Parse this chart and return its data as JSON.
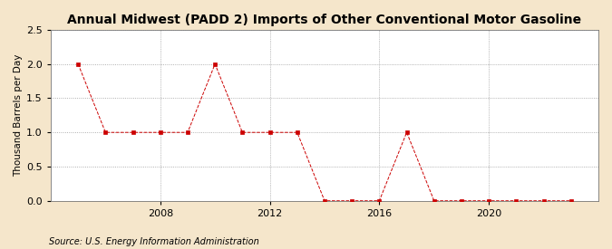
{
  "title": "Annual Midwest (PADD 2) Imports of Other Conventional Motor Gasoline",
  "ylabel": "Thousand Barrels per Day",
  "source": "Source: U.S. Energy Information Administration",
  "background_color": "#f5e6cb",
  "plot_bg_color": "#ffffff",
  "line_color": "#cc0000",
  "marker": "s",
  "marker_size": 3,
  "line_style": "--",
  "line_width": 0.7,
  "years": [
    2005,
    2006,
    2007,
    2008,
    2009,
    2010,
    2011,
    2012,
    2013,
    2014,
    2015,
    2016,
    2017,
    2018,
    2019,
    2020,
    2021,
    2022,
    2023
  ],
  "values": [
    2.0,
    1.0,
    1.0,
    1.0,
    1.0,
    2.0,
    1.0,
    1.0,
    1.0,
    0.0,
    0.0,
    0.0,
    1.0,
    0.0,
    0.0,
    0.0,
    0.0,
    0.0,
    0.0
  ],
  "xlim": [
    2004.0,
    2024.0
  ],
  "ylim": [
    0.0,
    2.5
  ],
  "yticks": [
    0.0,
    0.5,
    1.0,
    1.5,
    2.0,
    2.5
  ],
  "xticks": [
    2008,
    2012,
    2016,
    2020
  ],
  "hgrid_color": "#999999",
  "vgrid_color": "#999999",
  "grid_style": ":",
  "title_fontsize": 10,
  "ylabel_fontsize": 7.5,
  "tick_fontsize": 8,
  "source_fontsize": 7
}
